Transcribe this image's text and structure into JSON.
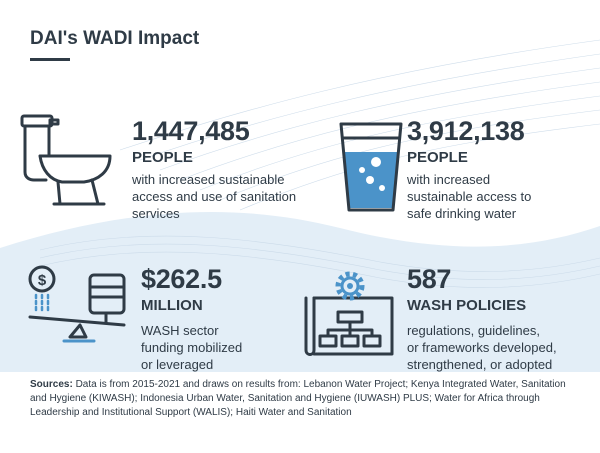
{
  "title": "DAI's WADI Impact",
  "colors": {
    "dark": "#2f3b46",
    "accent": "#4b93c9",
    "band": "#e1edf6"
  },
  "stats": [
    {
      "number": "1,447,485",
      "unit": "PEOPLE",
      "lines": [
        "with increased sustainable",
        "access and use of sanitation",
        "services"
      ],
      "icon": "toilet-icon"
    },
    {
      "number": "3,912,138",
      "unit": "PEOPLE",
      "lines": [
        "with increased",
        "sustainable access to",
        "safe drinking water"
      ],
      "icon": "water-glass-icon"
    },
    {
      "number": "$262.5",
      "unit": "MILLION",
      "lines": [
        "WASH sector",
        "funding mobilized",
        "or leveraged"
      ],
      "icon": "funding-lever-icon"
    },
    {
      "number": "587",
      "unit": "WASH POLICIES",
      "lines": [
        "regulations, guidelines,",
        "or frameworks developed,",
        "strengthened, or adopted"
      ],
      "icon": "policy-flowchart-icon"
    }
  ],
  "sources": {
    "label": "Sources:",
    "lines": [
      " Data is from 2015-2021 and draws on results from: Lebanon Water Project; Kenya Integrated Water, Sanitation",
      "and Hygiene (KIWASH); Indonesia Urban Water, Sanitation and Hygiene (IUWASH) PLUS; Water for Africa through",
      "Leadership and Institutional Support (WALIS); Haiti Water and Sanitation"
    ]
  }
}
